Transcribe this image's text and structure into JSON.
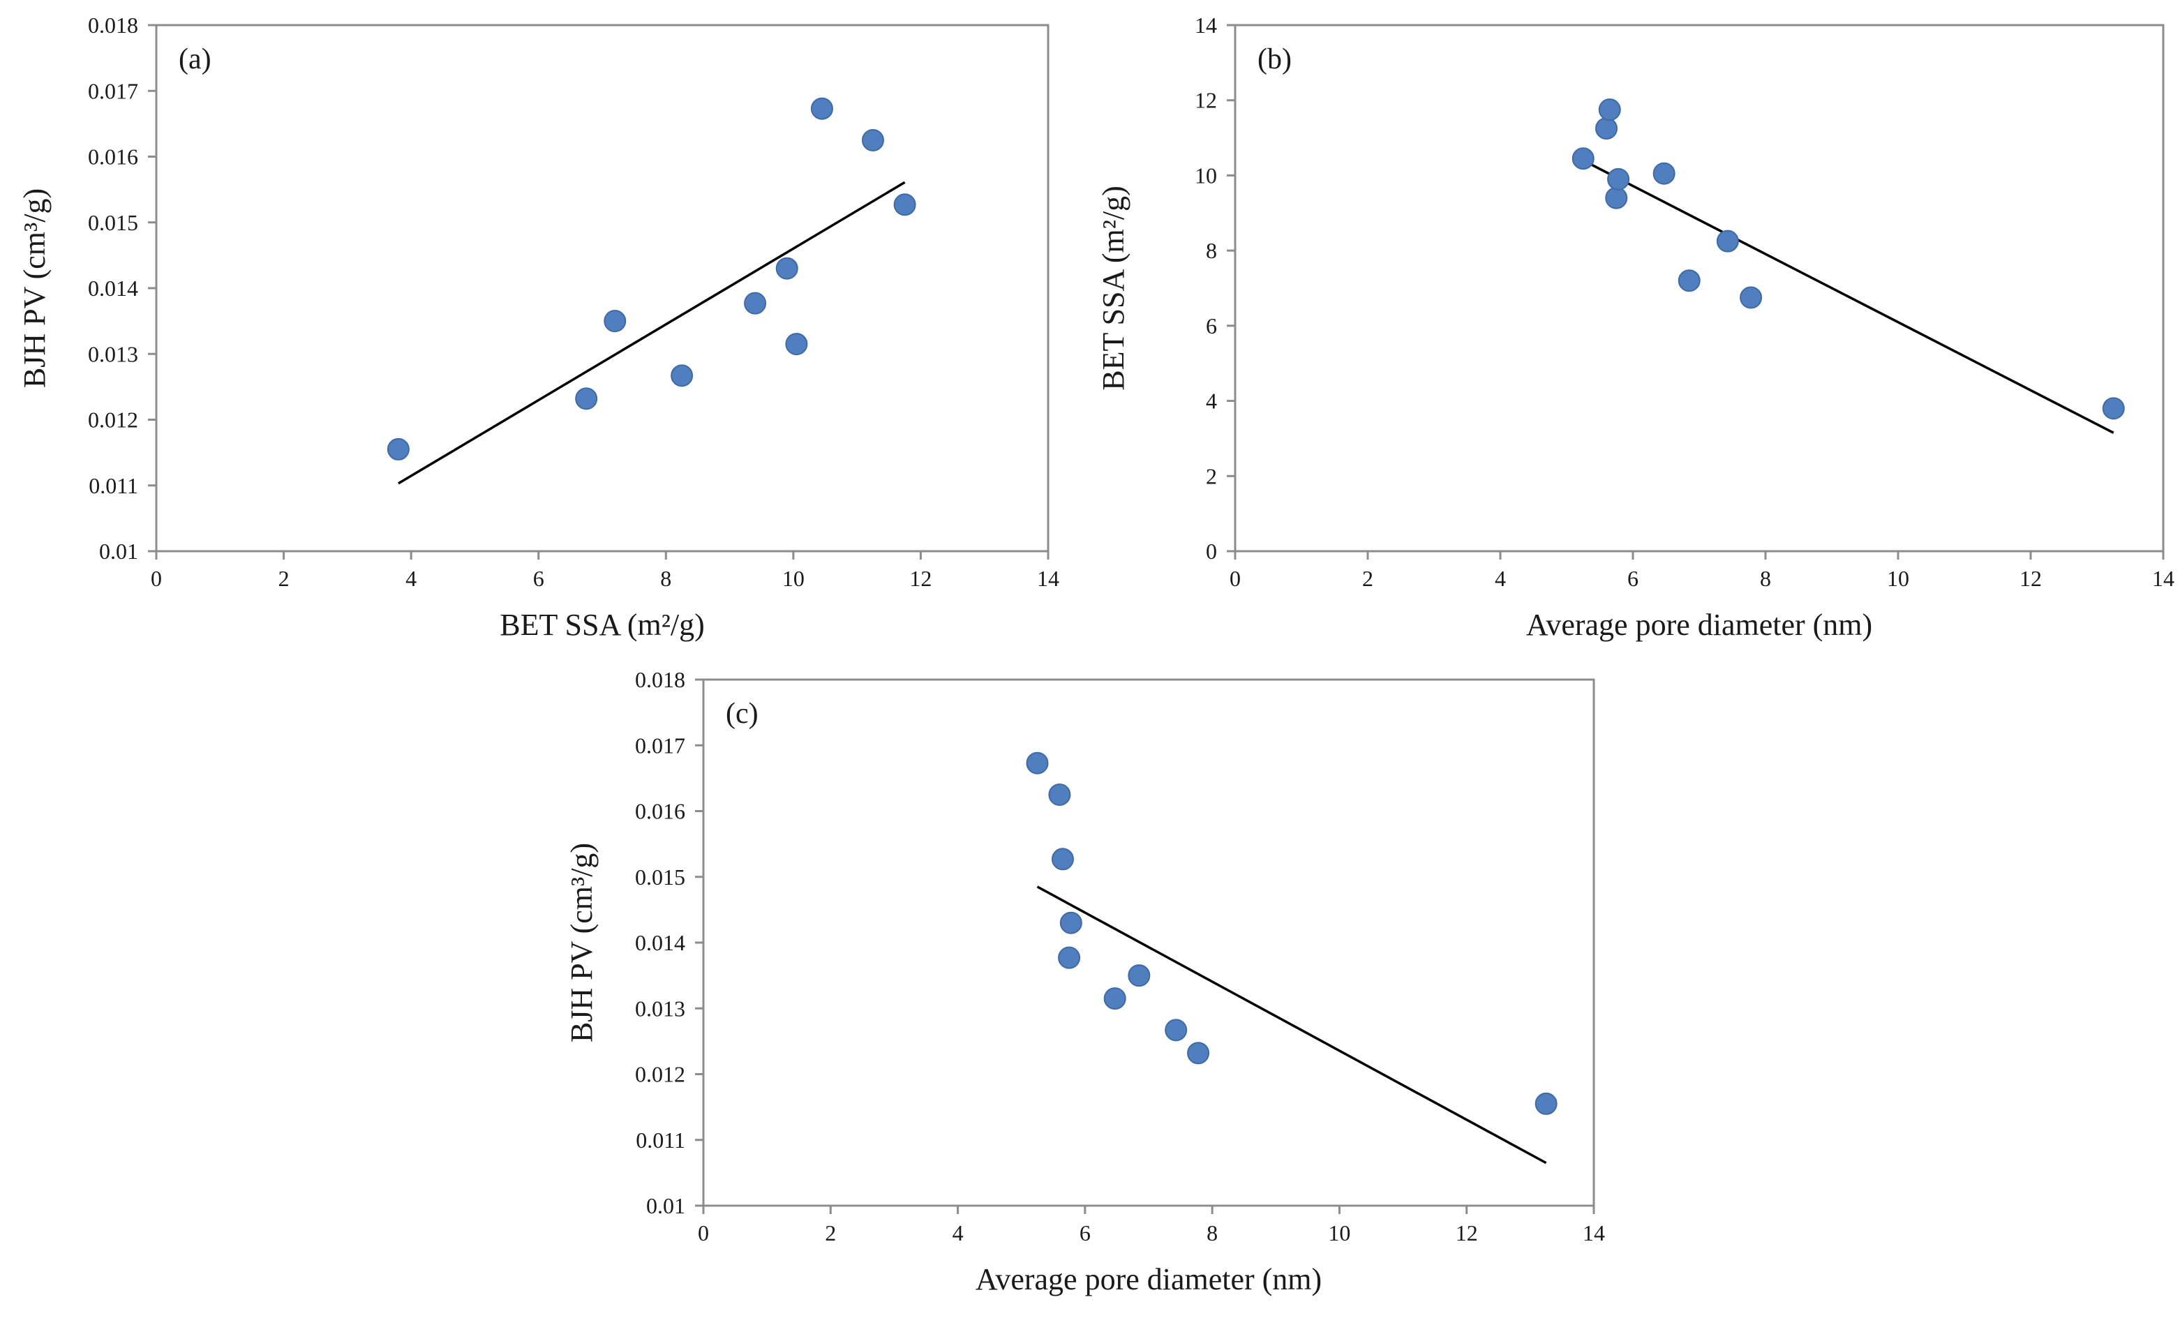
{
  "chart_data": [
    {
      "id": "a",
      "type": "scatter",
      "panel_label": "(a)",
      "xlabel": "BET SSA (m²/g)",
      "ylabel": "BJH PV (cm³/g)",
      "xlim": [
        0,
        14
      ],
      "ylim": [
        0.01,
        0.018
      ],
      "xticks": [
        "0",
        "2",
        "4",
        "6",
        "8",
        "10",
        "12",
        "14"
      ],
      "yticks": [
        "0.01",
        "0.011",
        "0.012",
        "0.013",
        "0.014",
        "0.015",
        "0.016",
        "0.017",
        "0.018"
      ],
      "grid": false,
      "points": [
        {
          "x": 3.8,
          "y": 0.01155
        },
        {
          "x": 6.75,
          "y": 0.01232
        },
        {
          "x": 7.2,
          "y": 0.0135
        },
        {
          "x": 8.25,
          "y": 0.01267
        },
        {
          "x": 9.4,
          "y": 0.01377
        },
        {
          "x": 9.9,
          "y": 0.0143
        },
        {
          "x": 10.05,
          "y": 0.01315
        },
        {
          "x": 10.45,
          "y": 0.01673
        },
        {
          "x": 11.25,
          "y": 0.01625
        },
        {
          "x": 11.75,
          "y": 0.01527
        }
      ],
      "trendline": [
        {
          "x": 3.8,
          "y": 0.01103
        },
        {
          "x": 11.75,
          "y": 0.01561
        }
      ],
      "marker_color": "#4f7fbf"
    },
    {
      "id": "b",
      "type": "scatter",
      "panel_label": "(b)",
      "xlabel": "Average pore diameter (nm)",
      "ylabel": "BET SSA (m²/g)",
      "xlim": [
        0,
        14
      ],
      "ylim": [
        0,
        14
      ],
      "xticks": [
        "0",
        "2",
        "4",
        "6",
        "8",
        "10",
        "12",
        "14"
      ],
      "yticks": [
        "0",
        "2",
        "4",
        "6",
        "8",
        "10",
        "12",
        "14"
      ],
      "grid": false,
      "points": [
        {
          "x": 5.25,
          "y": 10.45
        },
        {
          "x": 5.6,
          "y": 11.25
        },
        {
          "x": 5.65,
          "y": 11.75
        },
        {
          "x": 5.75,
          "y": 9.4
        },
        {
          "x": 5.78,
          "y": 9.9
        },
        {
          "x": 6.47,
          "y": 10.05
        },
        {
          "x": 6.85,
          "y": 7.2
        },
        {
          "x": 7.43,
          "y": 8.25
        },
        {
          "x": 7.78,
          "y": 6.75
        },
        {
          "x": 13.25,
          "y": 3.8
        }
      ],
      "trendline": [
        {
          "x": 5.25,
          "y": 10.4
        },
        {
          "x": 13.25,
          "y": 3.15
        }
      ],
      "marker_color": "#4f7fbf"
    },
    {
      "id": "c",
      "type": "scatter",
      "panel_label": "(c)",
      "xlabel": "Average pore diameter (nm)",
      "ylabel": "BJH PV (cm³/g)",
      "xlim": [
        0,
        14
      ],
      "ylim": [
        0.01,
        0.018
      ],
      "xticks": [
        "0",
        "2",
        "4",
        "6",
        "8",
        "10",
        "12",
        "14"
      ],
      "yticks": [
        "0.01",
        "0.011",
        "0.012",
        "0.013",
        "0.014",
        "0.015",
        "0.016",
        "0.017",
        "0.018"
      ],
      "grid": false,
      "points": [
        {
          "x": 5.25,
          "y": 0.01673
        },
        {
          "x": 5.6,
          "y": 0.01625
        },
        {
          "x": 5.65,
          "y": 0.01527
        },
        {
          "x": 5.75,
          "y": 0.01377
        },
        {
          "x": 5.78,
          "y": 0.0143
        },
        {
          "x": 6.47,
          "y": 0.01315
        },
        {
          "x": 6.85,
          "y": 0.0135
        },
        {
          "x": 7.43,
          "y": 0.01267
        },
        {
          "x": 7.78,
          "y": 0.01232
        },
        {
          "x": 13.25,
          "y": 0.01155
        }
      ],
      "trendline": [
        {
          "x": 5.25,
          "y": 0.01485
        },
        {
          "x": 13.25,
          "y": 0.01065
        }
      ],
      "marker_color": "#4f7fbf"
    }
  ]
}
